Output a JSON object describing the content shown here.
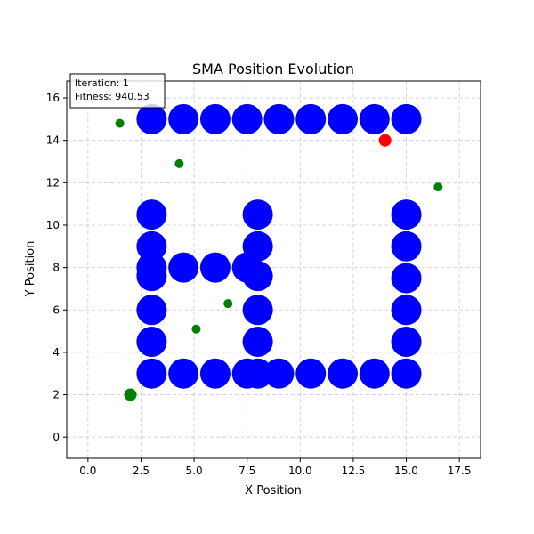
{
  "chart_data": {
    "type": "scatter",
    "title": "SMA Position Evolution",
    "xlabel": "X Position",
    "ylabel": "Y Position",
    "xlim": [
      -1,
      18.5
    ],
    "ylim": [
      -1,
      16.8
    ],
    "x_ticks": [
      0.0,
      2.5,
      5.0,
      7.5,
      10.0,
      12.5,
      15.0,
      17.5
    ],
    "y_ticks": [
      0,
      2,
      4,
      6,
      8,
      10,
      12,
      14,
      16
    ],
    "x_tick_labels": [
      "0.0",
      "2.5",
      "5.0",
      "7.5",
      "10.0",
      "12.5",
      "15.0",
      "17.5"
    ],
    "y_tick_labels": [
      "0",
      "2",
      "4",
      "6",
      "8",
      "10",
      "12",
      "14",
      "16"
    ],
    "grid": true,
    "annotation": {
      "line1": "Iteration: 1",
      "line2": "Fitness: 940.53"
    },
    "series": [
      {
        "kind": "obstacles",
        "color": "#0000ff",
        "points": [
          [
            3,
            15
          ],
          [
            4.5,
            15
          ],
          [
            6,
            15
          ],
          [
            7.5,
            15
          ],
          [
            9,
            15
          ],
          [
            10.5,
            15
          ],
          [
            12,
            15
          ],
          [
            13.5,
            15
          ],
          [
            15,
            15
          ],
          [
            3,
            10.5
          ],
          [
            3,
            9
          ],
          [
            3,
            8
          ],
          [
            3,
            7.6
          ],
          [
            3,
            6
          ],
          [
            3,
            4.5
          ],
          [
            3,
            3
          ],
          [
            4.5,
            8
          ],
          [
            6,
            8
          ],
          [
            7.5,
            8
          ],
          [
            8,
            10.5
          ],
          [
            8,
            9
          ],
          [
            8,
            7.6
          ],
          [
            8,
            6
          ],
          [
            8,
            4.5
          ],
          [
            4.5,
            3
          ],
          [
            6,
            3
          ],
          [
            7.5,
            3
          ],
          [
            8,
            3
          ],
          [
            9,
            3
          ],
          [
            10.5,
            3
          ],
          [
            12,
            3
          ],
          [
            13.5,
            3
          ],
          [
            15,
            3
          ],
          [
            15,
            10.5
          ],
          [
            15,
            9
          ],
          [
            15,
            7.5
          ],
          [
            15,
            6
          ],
          [
            15,
            4.5
          ]
        ]
      },
      {
        "kind": "agents",
        "color": "#008000",
        "points": [
          [
            1.5,
            14.8
          ],
          [
            4.3,
            12.9
          ],
          [
            16.5,
            11.8
          ],
          [
            6.6,
            6.3
          ],
          [
            5.1,
            5.1
          ]
        ]
      },
      {
        "kind": "start",
        "color": "#008000",
        "points": [
          [
            2,
            2
          ]
        ]
      },
      {
        "kind": "best",
        "color": "#ff0000",
        "points": [
          [
            14,
            14
          ]
        ]
      }
    ]
  }
}
